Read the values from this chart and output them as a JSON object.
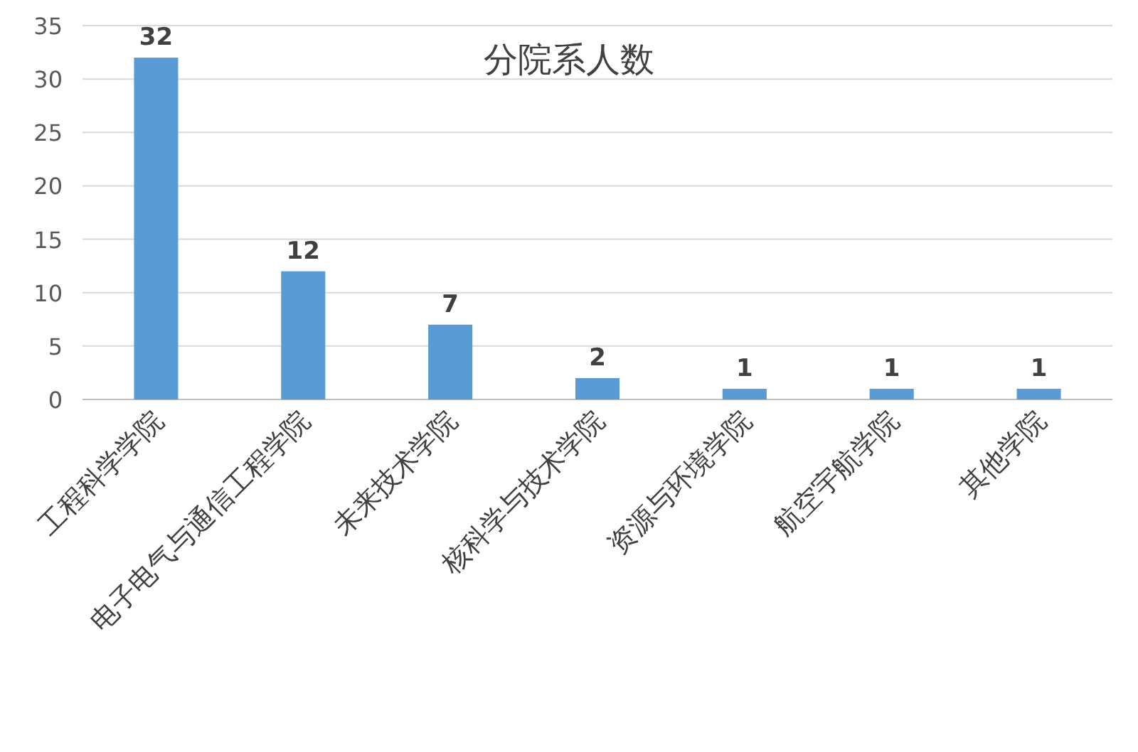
{
  "chart_data": {
    "type": "bar",
    "title": "分院系人数",
    "categories": [
      "工程科学学院",
      "电子电气与通信工程学院",
      "未来技术学院",
      "核科学与技术学院",
      "资源与环境学院",
      "航空宇航学院",
      "其他学院"
    ],
    "values": [
      32,
      12,
      7,
      2,
      1,
      1,
      1
    ],
    "color": "#5b9bd5",
    "ylim": [
      0,
      35
    ],
    "yticks": [
      0,
      5,
      10,
      15,
      20,
      25,
      30,
      35
    ],
    "grid": "y",
    "data_labels": true
  }
}
